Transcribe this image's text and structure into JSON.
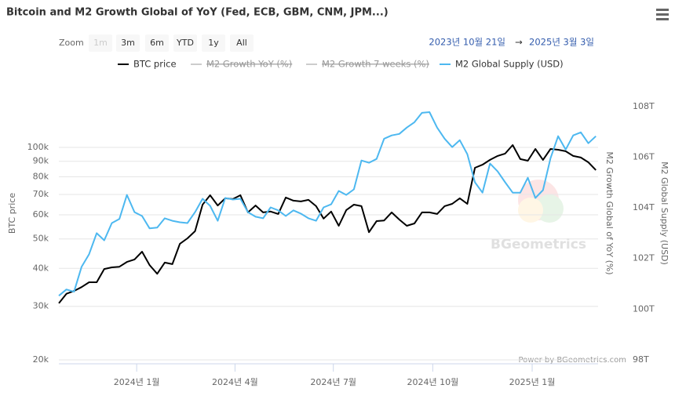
{
  "chart_data": {
    "type": "line",
    "title": "Bitcoin and M2 Growth Global of YoY (Fed, ECB, GBM, CNM, JPM...)",
    "range_selector": {
      "label": "Zoom",
      "buttons": [
        "1m",
        "3m",
        "6m",
        "YTD",
        "1y",
        "All"
      ],
      "date_from": "2023년 10월 21일",
      "separator": "→",
      "date_to": "2025년 3월 3일"
    },
    "y_label": "BTC price",
    "y2_labels": [
      "M2 Growth Global of YoY (%)",
      "M2 Global Supply (USD)"
    ],
    "credits": "Power by BGeometrics.com",
    "watermark": "BGeometrics",
    "log_scale_y": true,
    "grid": true,
    "x": [
      "2023-10-21",
      "2023-10-28",
      "2023-11-04",
      "2023-11-11",
      "2023-11-18",
      "2023-11-25",
      "2023-12-02",
      "2023-12-09",
      "2023-12-16",
      "2023-12-23",
      "2023-12-30",
      "2024-01-06",
      "2024-01-13",
      "2024-01-20",
      "2024-01-27",
      "2024-02-03",
      "2024-02-10",
      "2024-02-17",
      "2024-02-24",
      "2024-03-02",
      "2024-03-09",
      "2024-03-16",
      "2024-03-23",
      "2024-03-30",
      "2024-04-06",
      "2024-04-13",
      "2024-04-20",
      "2024-04-27",
      "2024-05-04",
      "2024-05-11",
      "2024-05-18",
      "2024-05-25",
      "2024-06-01",
      "2024-06-08",
      "2024-06-15",
      "2024-06-22",
      "2024-06-29",
      "2024-07-06",
      "2024-07-13",
      "2024-07-20",
      "2024-07-27",
      "2024-08-03",
      "2024-08-10",
      "2024-08-17",
      "2024-08-24",
      "2024-08-31",
      "2024-09-07",
      "2024-09-14",
      "2024-09-21",
      "2024-09-28",
      "2024-10-05",
      "2024-10-12",
      "2024-10-19",
      "2024-10-26",
      "2024-11-02",
      "2024-11-09",
      "2024-11-16",
      "2024-11-23",
      "2024-11-30",
      "2024-12-07",
      "2024-12-14",
      "2024-12-21",
      "2024-12-28",
      "2025-01-04",
      "2025-01-11",
      "2025-01-18",
      "2025-01-25",
      "2025-02-01",
      "2025-02-08",
      "2025-02-15",
      "2025-02-22",
      "2025-03-01"
    ],
    "xlim": [
      "2023-10-21",
      "2025-03-03"
    ],
    "xticks": [
      {
        "value": "2024-01-01",
        "label": "2024년 1월"
      },
      {
        "value": "2024-04-01",
        "label": "2024년 4월"
      },
      {
        "value": "2024-07-01",
        "label": "2024년 7월"
      },
      {
        "value": "2024-10-01",
        "label": "2024년 10월"
      },
      {
        "value": "2025-01-01",
        "label": "2025년 1월"
      }
    ],
    "ylim": [
      20000,
      150000
    ],
    "yticks": [
      {
        "value": 20000,
        "label": "20k"
      },
      {
        "value": 30000,
        "label": "30k"
      },
      {
        "value": 40000,
        "label": "40k"
      },
      {
        "value": 50000,
        "label": "50k"
      },
      {
        "value": 60000,
        "label": "60k"
      },
      {
        "value": 70000,
        "label": "70k"
      },
      {
        "value": 80000,
        "label": "80k"
      },
      {
        "value": 90000,
        "label": "90k"
      },
      {
        "value": 100000,
        "label": "100k"
      }
    ],
    "y2lim": [
      98,
      108.5
    ],
    "y2ticks": [
      {
        "value": 98,
        "label": "98T"
      },
      {
        "value": 100,
        "label": "100T"
      },
      {
        "value": 102,
        "label": "102T"
      },
      {
        "value": 104,
        "label": "104T"
      },
      {
        "value": 106,
        "label": "106T"
      },
      {
        "value": 108,
        "label": "108T"
      }
    ],
    "series": [
      {
        "name": "BTC price",
        "color": "#000000",
        "visible": true,
        "values": [
          30700,
          33000,
          33700,
          34700,
          36000,
          36000,
          39800,
          40300,
          40500,
          42000,
          42800,
          45400,
          41000,
          38400,
          41800,
          41300,
          48200,
          50200,
          53000,
          64800,
          69600,
          64400,
          68000,
          67600,
          69600,
          61100,
          64400,
          61100,
          61500,
          60400,
          68400,
          66800,
          66400,
          67200,
          64100,
          58300,
          61500,
          55200,
          62200,
          64800,
          64100,
          52600,
          57200,
          57500,
          61100,
          57900,
          55200,
          56200,
          61100,
          61100,
          60400,
          64100,
          65200,
          68000,
          65200,
          85700,
          87700,
          91000,
          93700,
          95400,
          101800,
          91500,
          90400,
          98800,
          91000,
          98800,
          98200,
          97100,
          93700,
          92600,
          89300,
          84200
        ]
      },
      {
        "name": "M2 Growth YoY (%)",
        "color": "#555555",
        "visible": false
      },
      {
        "name": "M2 Growth 7 weeks (%)",
        "color": "#555555",
        "visible": false
      },
      {
        "name": "M2 Global Supply (USD)",
        "color": "#4db8f0",
        "axis": "y2",
        "visible": true,
        "values": [
          100.53,
          100.78,
          100.69,
          101.67,
          102.17,
          103.0,
          102.72,
          103.4,
          103.56,
          104.51,
          103.83,
          103.68,
          103.19,
          103.22,
          103.59,
          103.49,
          103.43,
          103.4,
          103.83,
          104.36,
          104.08,
          103.49,
          104.39,
          104.33,
          104.36,
          103.83,
          103.65,
          103.59,
          104.02,
          103.9,
          103.68,
          103.9,
          103.77,
          103.59,
          103.49,
          104.02,
          104.14,
          104.67,
          104.51,
          104.73,
          105.87,
          105.78,
          105.93,
          106.73,
          106.86,
          106.92,
          107.17,
          107.38,
          107.75,
          107.78,
          107.17,
          106.73,
          106.4,
          106.67,
          106.12,
          105.01,
          104.6,
          105.75,
          105.44,
          105.01,
          104.6,
          104.6,
          105.19,
          104.39,
          104.7,
          105.96,
          106.83,
          106.3,
          106.86,
          106.98,
          106.55,
          106.83
        ]
      }
    ]
  }
}
